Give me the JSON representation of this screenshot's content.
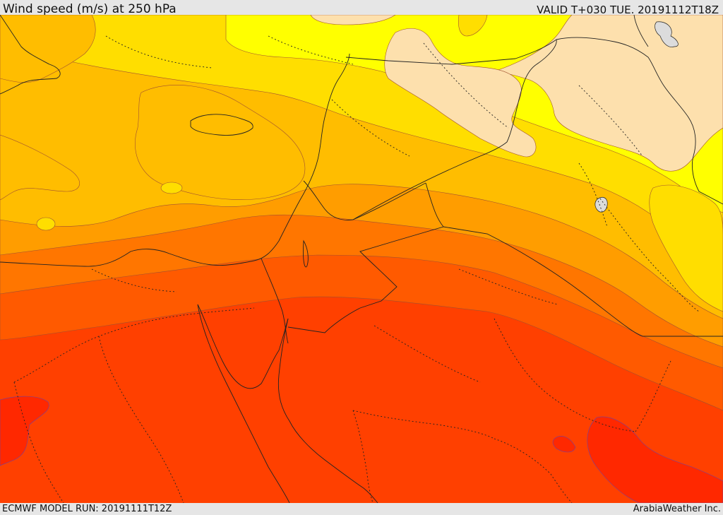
{
  "header": {
    "title": "Wind speed (m/s) at 250 hPa",
    "valid": "VALID T+030 TUE. 20191112T18Z"
  },
  "footer": {
    "model_run": "ECMWF MODEL RUN: 20191111T12Z",
    "credit": "ArabiaWeather Inc."
  },
  "map": {
    "fill_colors": {
      "lightest": "#fde0ad",
      "yellow": "#ffff00",
      "gold": "#ffde00",
      "amber": "#ffbd00",
      "orange": "#ff9d00",
      "dark_orange": "#ff7600",
      "orange_red": "#ff5a00",
      "red_orange": "#ff4000",
      "red": "#ff2800",
      "lake": "#dcdcdc"
    }
  }
}
